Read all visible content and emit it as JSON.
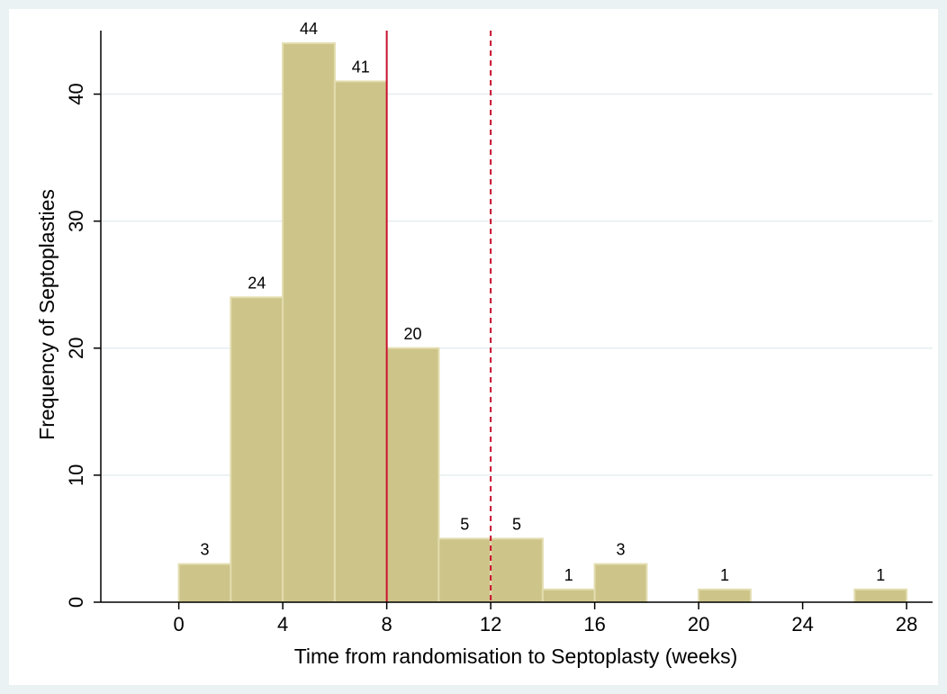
{
  "chart_data": {
    "type": "bar",
    "title": "",
    "xlabel": "Time from randomisation to Septoplasty (weeks)",
    "ylabel": "Frequency of Septoplasties",
    "bin_width": 2,
    "bins": [
      {
        "start": 0,
        "end": 2,
        "value": 3,
        "label": "3"
      },
      {
        "start": 2,
        "end": 4,
        "value": 24,
        "label": "24"
      },
      {
        "start": 4,
        "end": 6,
        "value": 44,
        "label": "44"
      },
      {
        "start": 6,
        "end": 8,
        "value": 41,
        "label": "41"
      },
      {
        "start": 8,
        "end": 10,
        "value": 20,
        "label": "20"
      },
      {
        "start": 10,
        "end": 12,
        "value": 5,
        "label": "5"
      },
      {
        "start": 12,
        "end": 14,
        "value": 5,
        "label": "5"
      },
      {
        "start": 14,
        "end": 16,
        "value": 1,
        "label": "1"
      },
      {
        "start": 16,
        "end": 18,
        "value": 3,
        "label": "3"
      },
      {
        "start": 20,
        "end": 22,
        "value": 1,
        "label": "1"
      },
      {
        "start": 26,
        "end": 28,
        "value": 1,
        "label": "1"
      }
    ],
    "xticks": [
      0,
      4,
      8,
      12,
      16,
      20,
      24,
      28
    ],
    "xtick_labels": [
      "0",
      "4",
      "8",
      "12",
      "16",
      "20",
      "24",
      "28"
    ],
    "yticks": [
      0,
      10,
      20,
      30,
      40
    ],
    "ytick_labels": [
      "0",
      "10",
      "20",
      "30",
      "40"
    ],
    "xlim": [
      -3,
      29
    ],
    "ylim": [
      0,
      45
    ],
    "grid": true,
    "reference_lines": [
      {
        "x": 8,
        "style": "solid",
        "color": "#c8102e"
      },
      {
        "x": 12,
        "style": "dashed",
        "color": "#c8102e"
      }
    ],
    "colors": {
      "bar_fill": "#cdc48a",
      "bar_edge": "#e2dcae",
      "plot_background": "#ffffff",
      "outer_background": "#eaf2f3",
      "grid": "#e6eef0",
      "axis": "#000000"
    }
  }
}
